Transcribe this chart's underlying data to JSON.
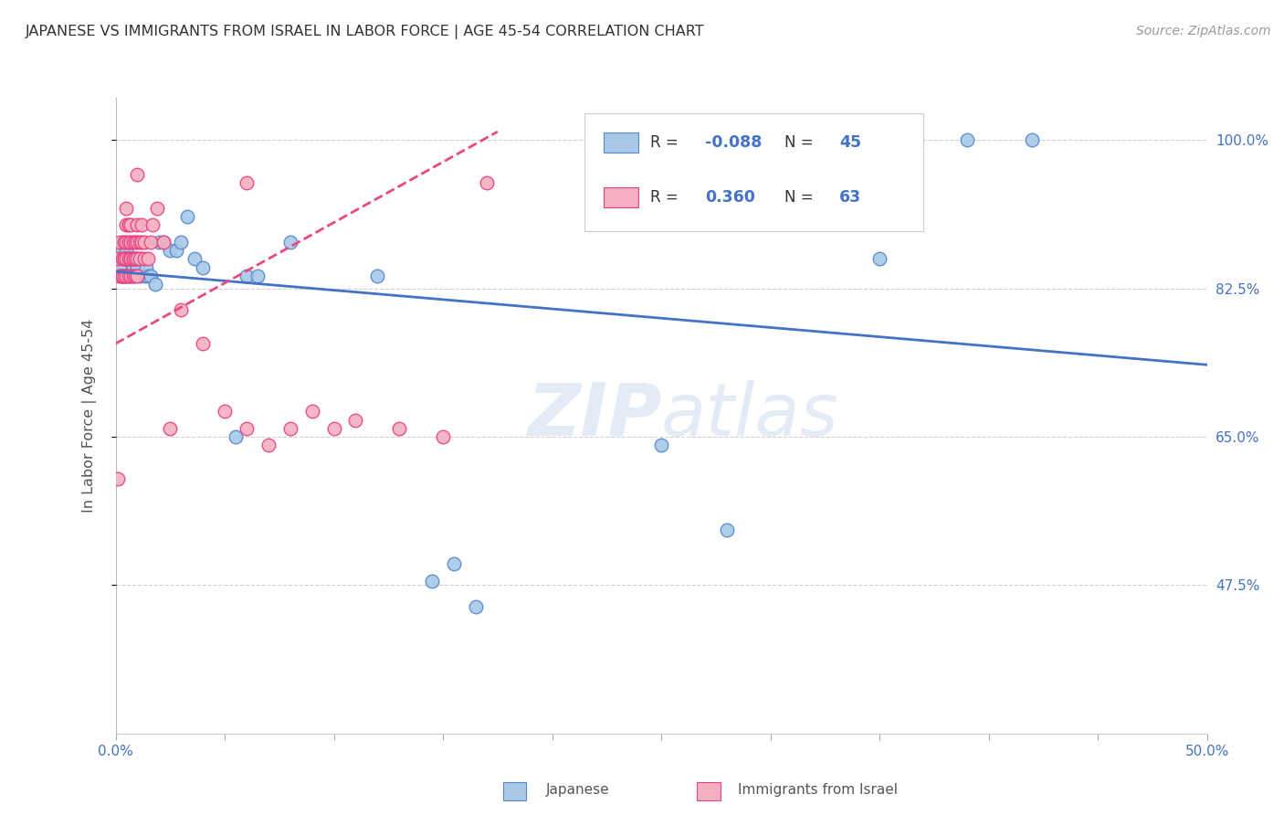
{
  "title": "JAPANESE VS IMMIGRANTS FROM ISRAEL IN LABOR FORCE | AGE 45-54 CORRELATION CHART",
  "source": "Source: ZipAtlas.com",
  "ylabel_label": "In Labor Force | Age 45-54",
  "x_min": 0.0,
  "x_max": 0.5,
  "y_min": 0.3,
  "y_max": 1.05,
  "x_ticks": [
    0.0,
    0.05,
    0.1,
    0.15,
    0.2,
    0.25,
    0.3,
    0.35,
    0.4,
    0.45,
    0.5
  ],
  "x_tick_labels": [
    "0.0%",
    "",
    "",
    "",
    "",
    "",
    "",
    "",
    "",
    "",
    "50.0%"
  ],
  "y_ticks": [
    0.475,
    0.65,
    0.825,
    1.0
  ],
  "y_tick_labels": [
    "47.5%",
    "65.0%",
    "82.5%",
    "100.0%"
  ],
  "watermark": "ZIPatlas",
  "legend_r_blue": "-0.088",
  "legend_n_blue": "45",
  "legend_r_pink": "0.360",
  "legend_n_pink": "63",
  "blue_scatter_x": [
    0.002,
    0.003,
    0.003,
    0.003,
    0.004,
    0.004,
    0.005,
    0.005,
    0.005,
    0.006,
    0.006,
    0.007,
    0.007,
    0.008,
    0.009,
    0.01,
    0.01,
    0.011,
    0.012,
    0.013,
    0.014,
    0.015,
    0.016,
    0.018,
    0.02,
    0.022,
    0.025,
    0.028,
    0.03,
    0.033,
    0.036,
    0.04,
    0.055,
    0.06,
    0.065,
    0.08,
    0.12,
    0.145,
    0.155,
    0.165,
    0.25,
    0.28,
    0.35,
    0.39,
    0.42
  ],
  "blue_scatter_y": [
    0.85,
    0.87,
    0.84,
    0.88,
    0.86,
    0.84,
    0.87,
    0.86,
    0.84,
    0.86,
    0.84,
    0.84,
    0.86,
    0.85,
    0.86,
    0.85,
    0.86,
    0.84,
    0.86,
    0.84,
    0.85,
    0.84,
    0.84,
    0.83,
    0.88,
    0.88,
    0.87,
    0.87,
    0.88,
    0.91,
    0.86,
    0.85,
    0.65,
    0.84,
    0.84,
    0.88,
    0.84,
    0.48,
    0.5,
    0.45,
    0.64,
    0.54,
    0.86,
    1.0,
    1.0
  ],
  "pink_scatter_x": [
    0.001,
    0.001,
    0.002,
    0.002,
    0.002,
    0.003,
    0.003,
    0.003,
    0.004,
    0.004,
    0.004,
    0.004,
    0.005,
    0.005,
    0.005,
    0.005,
    0.005,
    0.006,
    0.006,
    0.006,
    0.006,
    0.007,
    0.007,
    0.007,
    0.007,
    0.007,
    0.008,
    0.008,
    0.008,
    0.008,
    0.009,
    0.009,
    0.009,
    0.01,
    0.01,
    0.01,
    0.01,
    0.011,
    0.011,
    0.012,
    0.012,
    0.013,
    0.013,
    0.015,
    0.016,
    0.017,
    0.019,
    0.022,
    0.025,
    0.03,
    0.04,
    0.05,
    0.06,
    0.07,
    0.08,
    0.09,
    0.1,
    0.11,
    0.13,
    0.15,
    0.17,
    0.01,
    0.06
  ],
  "pink_scatter_y": [
    0.6,
    0.86,
    0.84,
    0.88,
    0.84,
    0.84,
    0.86,
    0.84,
    0.86,
    0.88,
    0.84,
    0.86,
    0.88,
    0.9,
    0.92,
    0.86,
    0.84,
    0.86,
    0.88,
    0.9,
    0.84,
    0.86,
    0.88,
    0.9,
    0.86,
    0.84,
    0.86,
    0.88,
    0.84,
    0.86,
    0.88,
    0.86,
    0.84,
    0.86,
    0.88,
    0.9,
    0.84,
    0.88,
    0.86,
    0.88,
    0.9,
    0.86,
    0.88,
    0.86,
    0.88,
    0.9,
    0.92,
    0.88,
    0.66,
    0.8,
    0.76,
    0.68,
    0.66,
    0.64,
    0.66,
    0.68,
    0.66,
    0.67,
    0.66,
    0.65,
    0.95,
    0.96,
    0.95
  ],
  "blue_color": "#a8c8e8",
  "pink_color": "#f4b0c0",
  "blue_edge_color": "#5588cc",
  "pink_edge_color": "#e84080",
  "blue_line_color": "#4472c4",
  "pink_line_color": "#e84a7f",
  "grid_color": "#d0d0d0",
  "background_color": "#ffffff",
  "title_color": "#333333",
  "axis_label_color": "#555555",
  "tick_color": "#4472c4",
  "source_color": "#999999"
}
